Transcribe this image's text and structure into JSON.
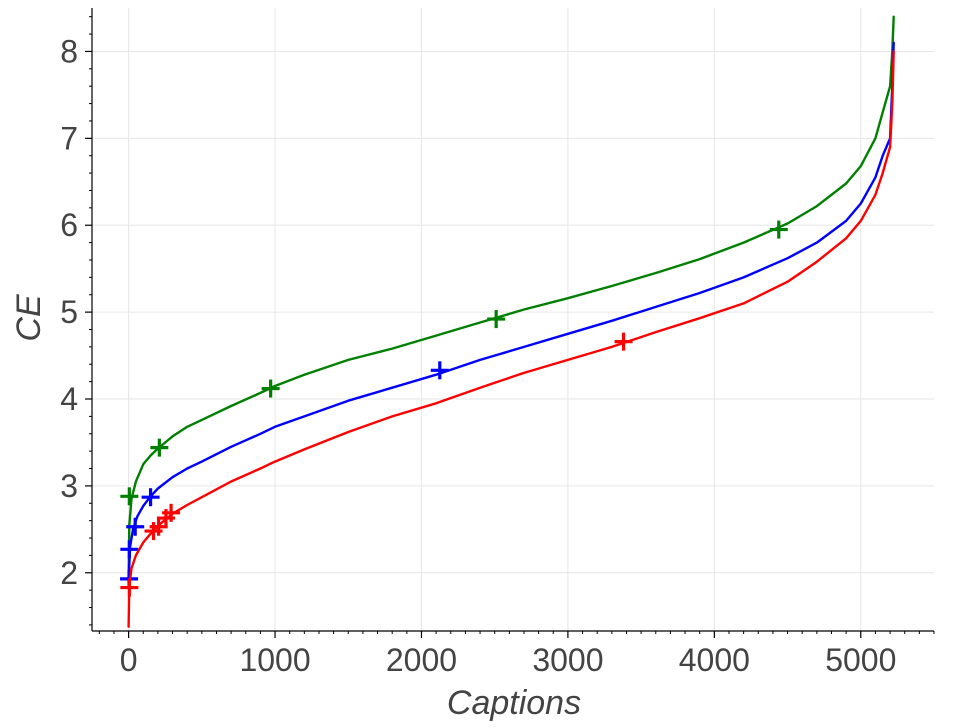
{
  "chart_data": {
    "type": "line",
    "xlabel": "Captions",
    "ylabel": "CE",
    "xlim": [
      -250,
      5500
    ],
    "ylim": [
      1.33,
      8.5
    ],
    "xticks": [
      0,
      1000,
      2000,
      3000,
      4000,
      5000
    ],
    "yticks": [
      2,
      3,
      4,
      5,
      6,
      7,
      8
    ],
    "x_minor_step": 100,
    "y_minor_step": 0.2,
    "grid": true,
    "legend": "none",
    "series": [
      {
        "color": "#008000",
        "x": [
          0,
          5,
          20,
          50,
          100,
          150,
          200,
          300,
          400,
          500,
          700,
          900,
          1000,
          1200,
          1500,
          1800,
          2100,
          2400,
          2700,
          3000,
          3300,
          3600,
          3900,
          4200,
          4500,
          4700,
          4900,
          5000,
          5100,
          5150,
          5200,
          5215,
          5225
        ],
        "y": [
          1.93,
          2.55,
          2.85,
          3.05,
          3.25,
          3.35,
          3.43,
          3.57,
          3.68,
          3.76,
          3.92,
          4.07,
          4.15,
          4.28,
          4.45,
          4.58,
          4.73,
          4.88,
          5.03,
          5.16,
          5.3,
          5.45,
          5.61,
          5.8,
          6.02,
          6.22,
          6.48,
          6.68,
          7.0,
          7.3,
          7.6,
          8.0,
          8.4
        ],
        "markers": [
          [
            5,
            2.88
          ],
          [
            210,
            3.44
          ],
          [
            970,
            4.12
          ],
          [
            2510,
            4.92
          ],
          [
            4440,
            5.95
          ]
        ]
      },
      {
        "color": "#0000ff",
        "x": [
          0,
          10,
          30,
          60,
          100,
          150,
          200,
          300,
          400,
          500,
          700,
          900,
          1000,
          1200,
          1500,
          1800,
          2100,
          2400,
          2700,
          3000,
          3300,
          3600,
          3900,
          4200,
          4500,
          4700,
          4900,
          5000,
          5100,
          5150,
          5200,
          5215,
          5225
        ],
        "y": [
          1.92,
          2.3,
          2.5,
          2.65,
          2.77,
          2.88,
          2.97,
          3.1,
          3.2,
          3.28,
          3.45,
          3.6,
          3.68,
          3.8,
          3.98,
          4.13,
          4.28,
          4.45,
          4.6,
          4.75,
          4.9,
          5.06,
          5.22,
          5.4,
          5.62,
          5.8,
          6.05,
          6.25,
          6.55,
          6.8,
          7.0,
          7.6,
          8.1
        ],
        "markers": [
          [
            3,
            1.93
          ],
          [
            5,
            2.27
          ],
          [
            45,
            2.53
          ],
          [
            150,
            2.87
          ],
          [
            2125,
            4.33
          ]
        ]
      },
      {
        "color": "#ff0000",
        "x": [
          0,
          5,
          20,
          50,
          100,
          150,
          200,
          300,
          400,
          500,
          700,
          900,
          1000,
          1200,
          1500,
          1800,
          2100,
          2400,
          2700,
          3000,
          3300,
          3600,
          3900,
          4200,
          4500,
          4700,
          4900,
          5000,
          5100,
          5150,
          5200,
          5215,
          5225
        ],
        "y": [
          1.38,
          1.85,
          2.05,
          2.2,
          2.35,
          2.45,
          2.54,
          2.68,
          2.78,
          2.87,
          3.05,
          3.2,
          3.28,
          3.42,
          3.62,
          3.8,
          3.95,
          4.13,
          4.3,
          4.45,
          4.6,
          4.77,
          4.93,
          5.1,
          5.35,
          5.58,
          5.85,
          6.05,
          6.35,
          6.6,
          6.9,
          7.4,
          8.0
        ],
        "markers": [
          [
            5,
            1.83
          ],
          [
            170,
            2.48
          ],
          [
            205,
            2.53
          ],
          [
            255,
            2.63
          ],
          [
            290,
            2.69
          ],
          [
            3380,
            4.66
          ]
        ]
      }
    ]
  }
}
